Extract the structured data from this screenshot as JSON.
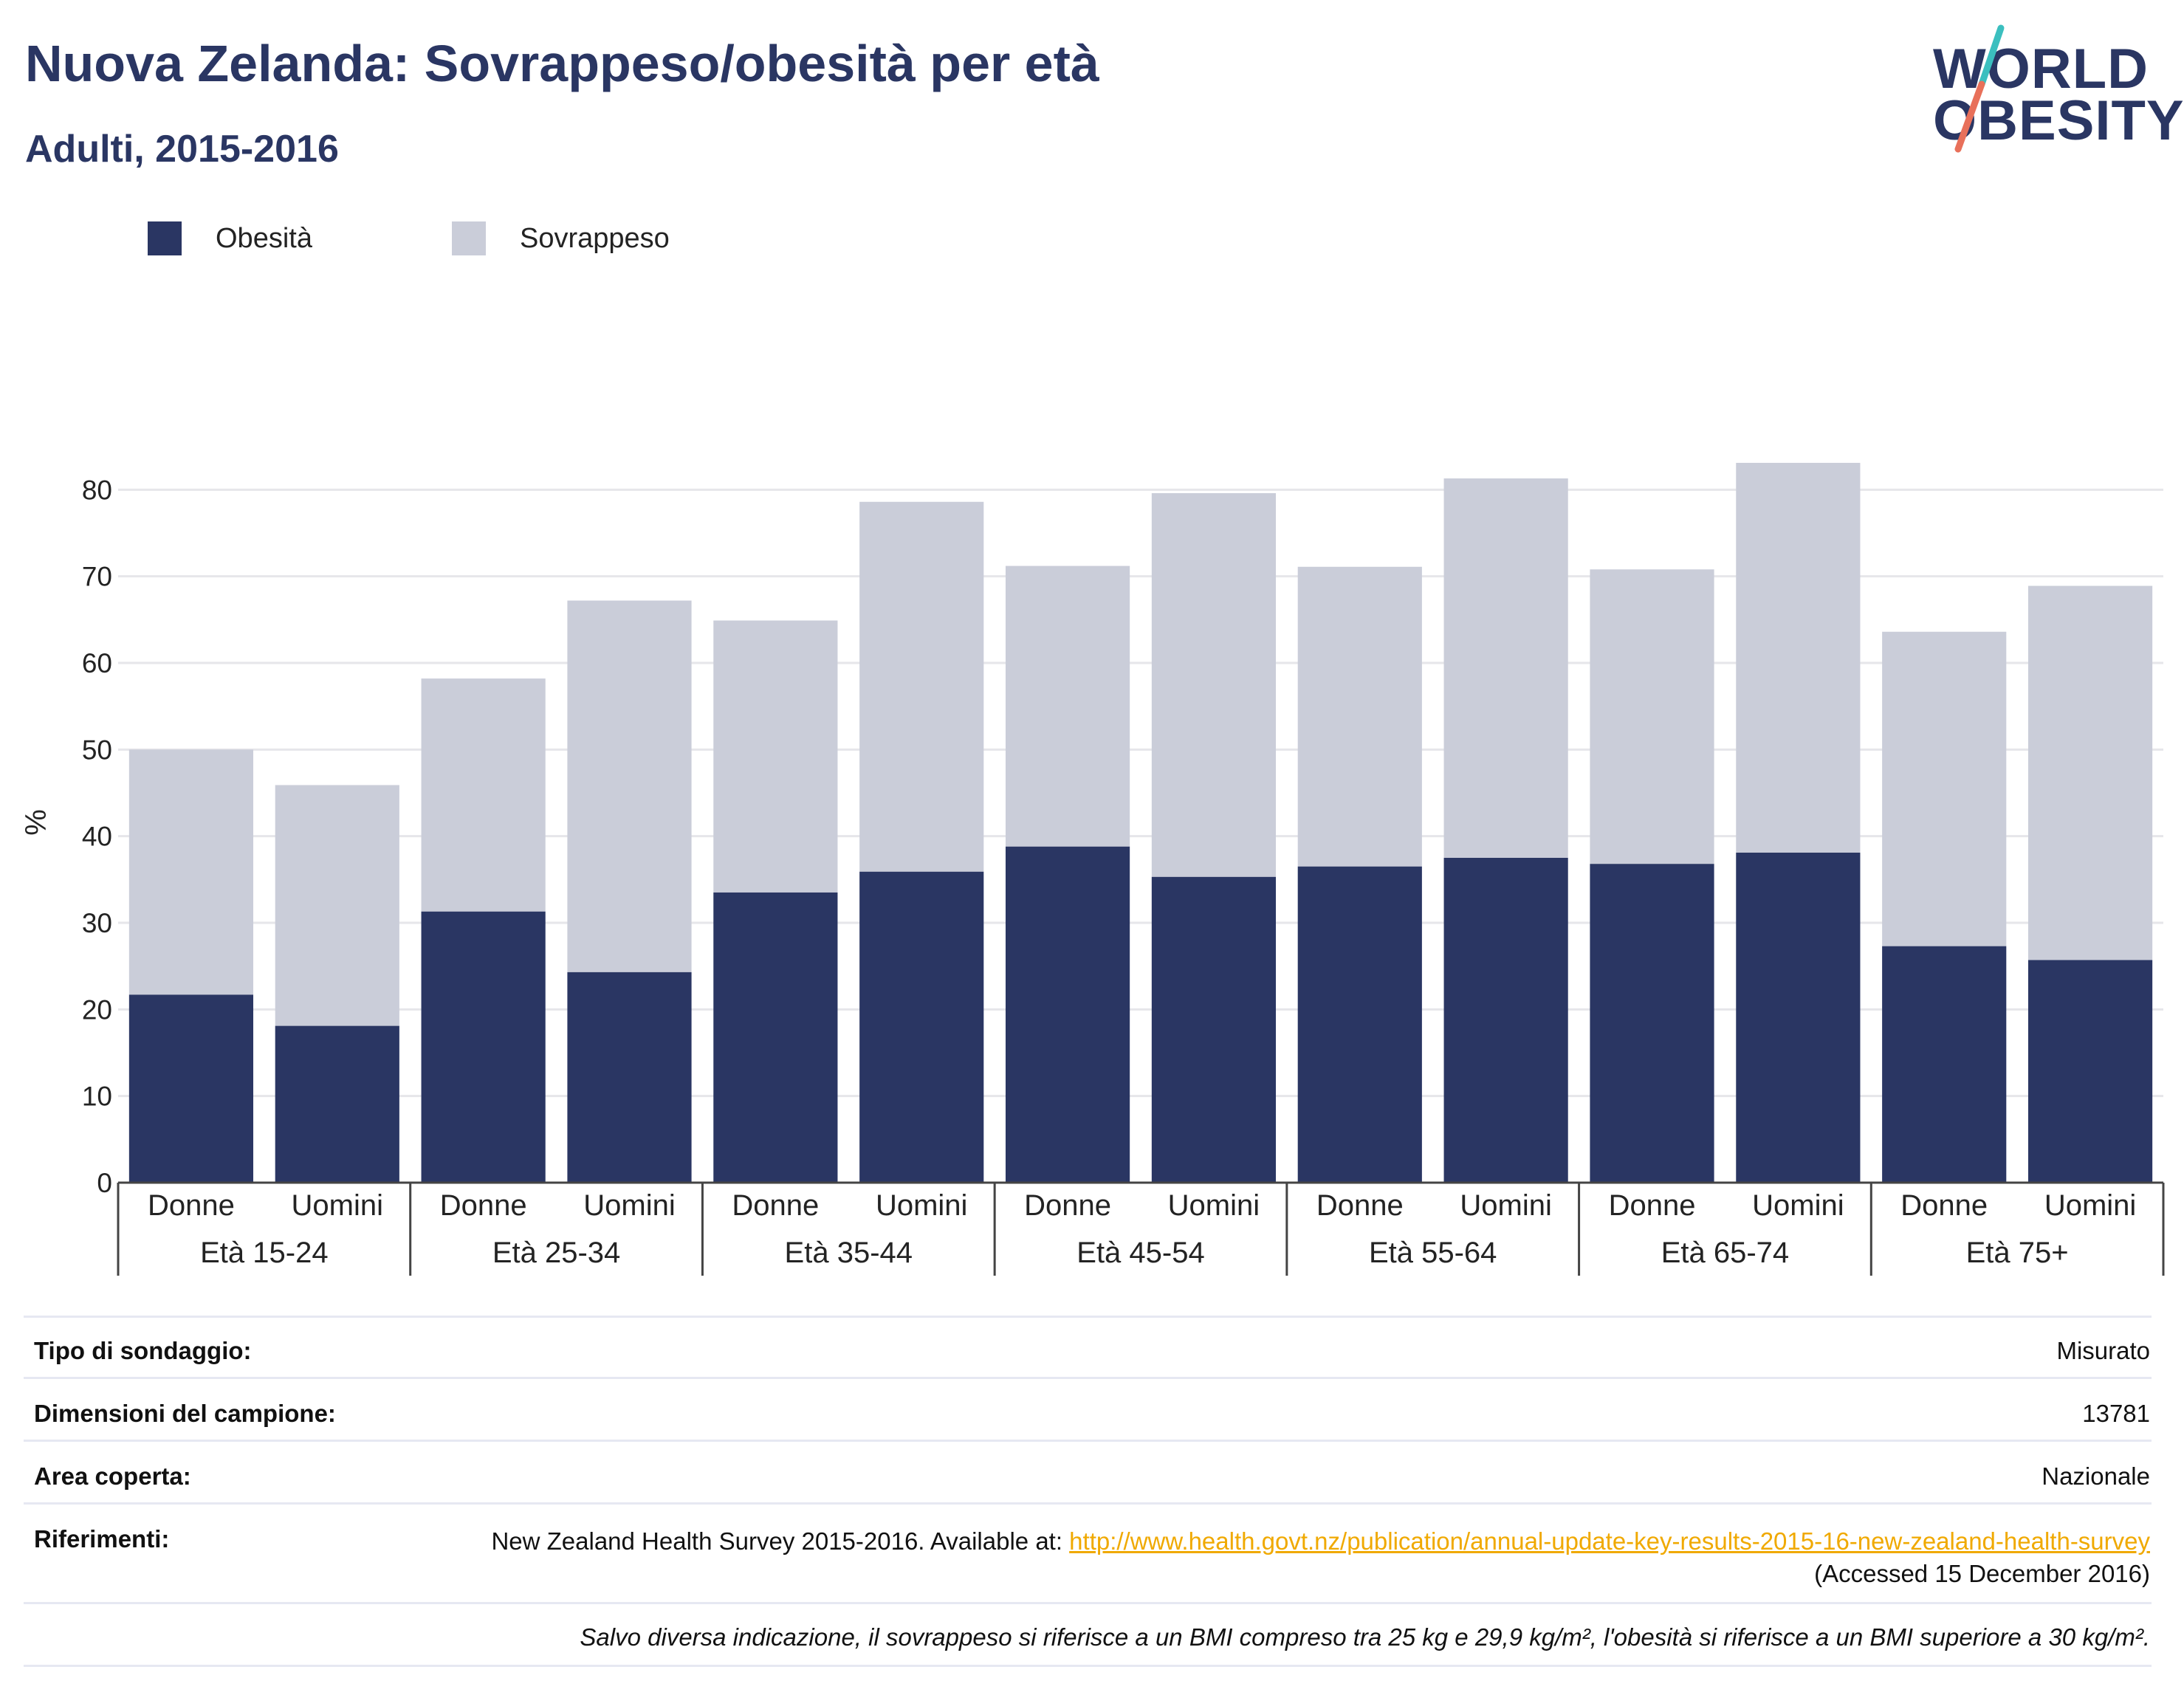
{
  "header": {
    "title": "Nuova Zelanda: Sovrappeso/obesità per età",
    "subtitle": "Adulti, 2015-2016"
  },
  "logo": {
    "line1": "WORLD",
    "line2": "OBESITY",
    "colors": {
      "text": "#2a3663",
      "slash_top": "#3bbfbf",
      "slash_bottom": "#e8705a"
    }
  },
  "legend": [
    {
      "label": "Obesità",
      "color": "#2a3663"
    },
    {
      "label": "Sovrappeso",
      "color": "#cacdd9"
    }
  ],
  "chart_data": {
    "type": "bar",
    "stacked": true,
    "ylabel": "%",
    "ylim": [
      0,
      90
    ],
    "yticks": [
      0,
      10,
      20,
      30,
      40,
      50,
      60,
      70,
      80
    ],
    "grid": true,
    "legend_position": "top-left",
    "groups": [
      "Età 15-24",
      "Età 25-34",
      "Età 35-44",
      "Età 45-54",
      "Età 55-64",
      "Età 65-74",
      "Età 75+"
    ],
    "sub_categories": [
      "Donne",
      "Uomini"
    ],
    "series": [
      {
        "name": "Obesità",
        "color": "#2a3663",
        "values": [
          21.7,
          18.1,
          31.3,
          24.3,
          33.5,
          35.9,
          38.8,
          35.3,
          36.5,
          37.5,
          36.8,
          38.1,
          27.3,
          25.7
        ]
      },
      {
        "name": "Sovrappeso",
        "color": "#cacdd9",
        "values": [
          28.3,
          27.8,
          26.9,
          42.9,
          31.4,
          42.7,
          32.4,
          44.3,
          34.6,
          43.8,
          34.0,
          45.0,
          36.3,
          43.2
        ]
      }
    ]
  },
  "info": {
    "survey_type": {
      "label": "Tipo di sondaggio:",
      "value": "Misurato"
    },
    "sample_size": {
      "label": "Dimensioni del campione:",
      "value": "13781"
    },
    "area": {
      "label": "Area coperta:",
      "value": "Nazionale"
    },
    "references": {
      "label": "Riferimenti:",
      "text_before": "New Zealand Health Survey 2015-2016. Available at: ",
      "link": "http://www.health.govt.nz/publication/annual-update-key-results-2015-16-new-zealand-health-survey",
      "text_after": " (Accessed 15 December 2016)"
    },
    "note": "Salvo diversa indicazione, il sovrappeso si riferisce a un BMI compreso tra 25 kg e 29,9 kg/m², l'obesità si riferisce a un BMI superiore a 30 kg/m²."
  }
}
